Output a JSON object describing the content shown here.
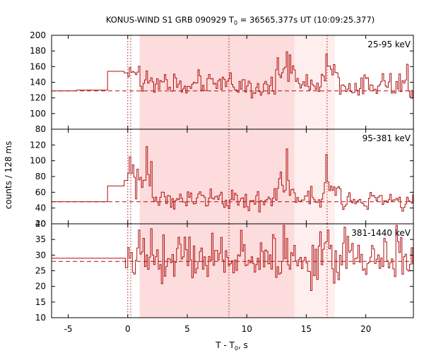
{
  "chart_data": {
    "type": "line",
    "title_main": "KONUS-WIND S1 GRB 090929 T",
    "title_sub": "0",
    "title_rest": " = 36565.377s UT (10:09:25.377)",
    "xlabel_main": "T - T",
    "xlabel_sub": "0",
    "xlabel_rest": ", s",
    "ylabel": "counts / 128 ms",
    "xlim": [
      -6.4,
      24
    ],
    "xticks": [
      -5,
      0,
      5,
      10,
      15,
      20
    ],
    "shaded_intervals": [
      {
        "from": 1.0,
        "to": 14.0,
        "color": "#fcdcdc"
      },
      {
        "from": 14.0,
        "to": 17.4,
        "color": "#feeeee"
      }
    ],
    "vertical_markers": [
      0.0,
      0.25,
      8.5,
      16.75
    ],
    "line_color": "#b01010",
    "panels": [
      {
        "label": "25-95 keV",
        "ylim": [
          80,
          200
        ],
        "yticks": [
          80,
          100,
          120,
          140,
          160,
          180,
          200
        ],
        "background": 129,
        "pre_steps": [
          [
            -6.4,
            -4.3,
            129
          ],
          [
            -4.3,
            -1.7,
            130
          ],
          [
            -1.7,
            -0.3,
            154
          ],
          [
            -0.3,
            0.0,
            152
          ]
        ],
        "fluct": {
          "start": 0.0,
          "dt": 0.128,
          "end": 24.0,
          "segments": [
            {
              "to": 0.5,
              "level": 158,
              "amp": 10
            },
            {
              "to": 1.0,
              "level": 146,
              "amp": 12
            },
            {
              "to": 12.4,
              "level": 137,
              "amp": 11
            },
            {
              "to": 14.0,
              "level": 156,
              "amp": 12
            },
            {
              "to": 16.3,
              "level": 137,
              "amp": 10
            },
            {
              "to": 17.6,
              "level": 152,
              "amp": 12
            },
            {
              "to": 24.0,
              "level": 134,
              "amp": 11
            }
          ],
          "spikes": [
            [
              13.3,
              179
            ],
            [
              13.6,
              175
            ],
            [
              16.6,
              176
            ],
            [
              23.4,
              163
            ]
          ]
        }
      },
      {
        "label": "95-381 keV",
        "ylim": [
          20,
          140
        ],
        "yticks": [
          20,
          40,
          60,
          80,
          100,
          120
        ],
        "background": 48,
        "pre_steps": [
          [
            -6.4,
            -1.7,
            48
          ],
          [
            -1.7,
            -0.3,
            68
          ],
          [
            -0.3,
            0.0,
            75
          ]
        ],
        "fluct": {
          "start": 0.0,
          "dt": 0.128,
          "end": 24.0,
          "segments": [
            {
              "to": 0.5,
              "level": 88,
              "amp": 14
            },
            {
              "to": 1.6,
              "level": 72,
              "amp": 12
            },
            {
              "to": 2.0,
              "level": 90,
              "amp": 14
            },
            {
              "to": 12.5,
              "level": 51,
              "amp": 9
            },
            {
              "to": 14.0,
              "level": 72,
              "amp": 14
            },
            {
              "to": 16.2,
              "level": 54,
              "amp": 10
            },
            {
              "to": 17.8,
              "level": 66,
              "amp": 12
            },
            {
              "to": 24.0,
              "level": 50,
              "amp": 8
            }
          ],
          "spikes": [
            [
              0.1,
              105
            ],
            [
              1.5,
              118
            ],
            [
              13.3,
              115
            ],
            [
              16.6,
              108
            ]
          ]
        }
      },
      {
        "label": "381-1440 keV",
        "ylim": [
          10,
          40
        ],
        "yticks": [
          10,
          15,
          20,
          25,
          30,
          35,
          40
        ],
        "background": 28,
        "pre_steps": [
          [
            -6.4,
            -1.7,
            29
          ],
          [
            -1.7,
            -0.2,
            29
          ],
          [
            -0.2,
            0.0,
            26
          ]
        ],
        "fluct": {
          "start": 0.0,
          "dt": 0.128,
          "end": 24.0,
          "segments": [
            {
              "to": 24.0,
              "level": 29,
              "amp": 6
            }
          ],
          "spikes": [
            [
              0.9,
              38
            ],
            [
              7.0,
              37
            ],
            [
              13.0,
              40
            ],
            [
              16.8,
              38
            ],
            [
              22.5,
              40
            ]
          ]
        }
      }
    ]
  }
}
